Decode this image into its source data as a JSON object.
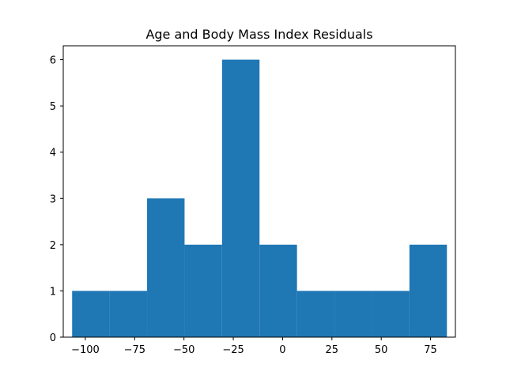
{
  "chart_data": {
    "type": "bar",
    "title": "Age and Body Mass Index Residuals",
    "xlabel": "",
    "ylabel": "",
    "xlim": [
      -111.2,
      87.6
    ],
    "ylim": [
      0,
      6.3
    ],
    "bins": [
      {
        "x0": -106.7,
        "x1": -87.7,
        "count": 1
      },
      {
        "x0": -87.7,
        "x1": -68.7,
        "count": 1
      },
      {
        "x0": -68.7,
        "x1": -49.7,
        "count": 3
      },
      {
        "x0": -49.7,
        "x1": -30.7,
        "count": 2
      },
      {
        "x0": -30.7,
        "x1": -11.7,
        "count": 6
      },
      {
        "x0": -11.7,
        "x1": 7.3,
        "count": 2
      },
      {
        "x0": 7.3,
        "x1": 26.3,
        "count": 1
      },
      {
        "x0": 26.3,
        "x1": 45.3,
        "count": 1
      },
      {
        "x0": 45.3,
        "x1": 64.3,
        "count": 1
      },
      {
        "x0": 64.3,
        "x1": 83.3,
        "count": 2
      }
    ],
    "xticks": [
      {
        "value": -100,
        "label": "−100"
      },
      {
        "value": -75,
        "label": "−75"
      },
      {
        "value": -50,
        "label": "−50"
      },
      {
        "value": -25,
        "label": "−25"
      },
      {
        "value": 0,
        "label": "0"
      },
      {
        "value": 25,
        "label": "25"
      },
      {
        "value": 50,
        "label": "50"
      },
      {
        "value": 75,
        "label": "75"
      }
    ],
    "yticks": [
      {
        "value": 0,
        "label": "0"
      },
      {
        "value": 1,
        "label": "1"
      },
      {
        "value": 2,
        "label": "2"
      },
      {
        "value": 3,
        "label": "3"
      },
      {
        "value": 4,
        "label": "4"
      },
      {
        "value": 5,
        "label": "5"
      },
      {
        "value": 6,
        "label": "6"
      }
    ],
    "grid": false,
    "legend": "none",
    "colors": {
      "bar": "#1f77b4",
      "axis": "#000000"
    }
  }
}
